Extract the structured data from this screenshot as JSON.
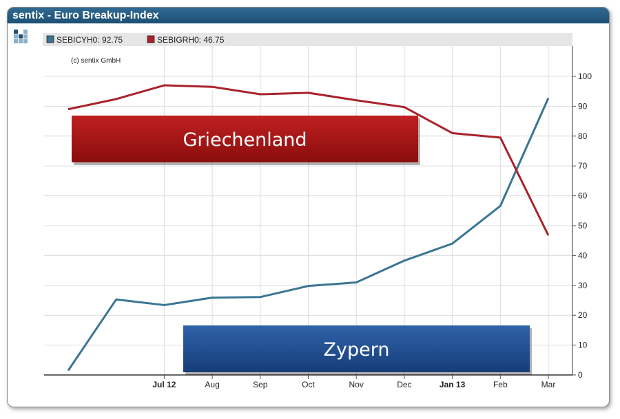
{
  "title": "sentix - Euro Breakup-Index",
  "copyright": "(c) sentix GmbH",
  "chart_data": {
    "type": "line",
    "x": [
      "2012-05",
      "2012-06",
      "2012-07",
      "2012-08",
      "2012-09",
      "2012-10",
      "2012-11",
      "2012-12",
      "2013-01",
      "2013-02",
      "2013-03"
    ],
    "x_tick_labels": [
      {
        "label": "Jul 12",
        "bold": true
      },
      {
        "label": "Aug",
        "bold": false
      },
      {
        "label": "Sep",
        "bold": false
      },
      {
        "label": "Oct",
        "bold": false
      },
      {
        "label": "Nov",
        "bold": false
      },
      {
        "label": "Dec",
        "bold": false
      },
      {
        "label": "Jan 13",
        "bold": true
      },
      {
        "label": "Feb",
        "bold": false
      },
      {
        "label": "Mar",
        "bold": false
      }
    ],
    "y_ticks": [
      0,
      10,
      20,
      30,
      40,
      50,
      60,
      70,
      80,
      90,
      100
    ],
    "ylim": [
      0,
      100
    ],
    "yaxis_side": "right",
    "grid": true,
    "legend_position": "top",
    "series": [
      {
        "name": "SEBICYH0",
        "legend_value": "92.75",
        "color": "#3a7594",
        "values": [
          1.5,
          25.3,
          23.4,
          25.9,
          26.1,
          29.8,
          31.0,
          38.3,
          44.0,
          56.6,
          92.75
        ]
      },
      {
        "name": "SEBIGRH0",
        "legend_value": "46.75",
        "color": "#a8232a",
        "values": [
          89.0,
          92.4,
          97.0,
          96.5,
          94.0,
          94.5,
          92.0,
          89.7,
          81.0,
          79.5,
          46.75
        ]
      }
    ],
    "annotations": [
      {
        "text": "Griechenland",
        "color": "#9e1515"
      },
      {
        "text": "Zypern",
        "color": "#214d8e"
      }
    ]
  }
}
